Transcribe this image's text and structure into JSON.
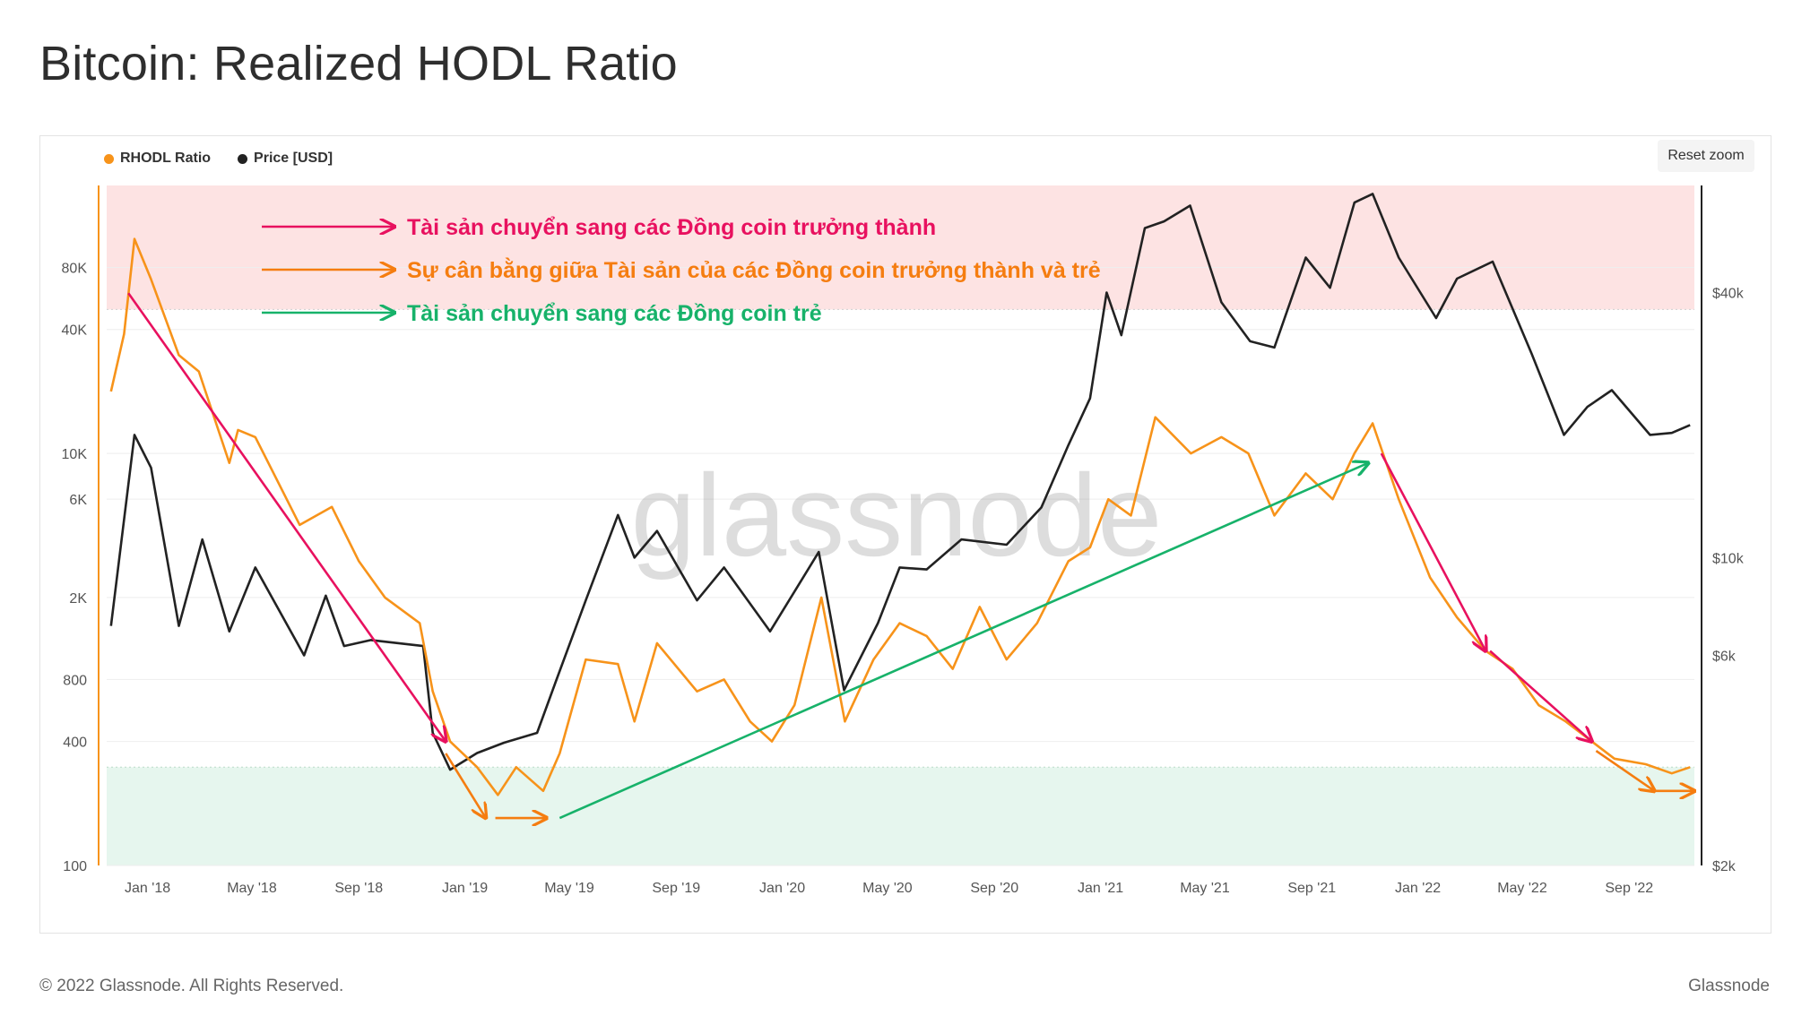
{
  "page": {
    "title": "Bitcoin: Realized HODL Ratio",
    "reset_zoom_label": "Reset zoom",
    "footer_copyright": "© 2022 Glassnode. All Rights Reserved.",
    "footer_brand": "Glassnode"
  },
  "colors": {
    "rhodl": "#f7931a",
    "price": "#222222",
    "arrow_pink": "#e8115f",
    "arrow_orange": "#f57d10",
    "arrow_green": "#17b26a",
    "band_red": "#fde3e3",
    "band_green": "#e6f6ee"
  },
  "annotations": [
    {
      "text": "Tài sản chuyển sang các Đồng coin trưởng thành",
      "color_key": "arrow_pink"
    },
    {
      "text": "Sự cân bằng giữa Tài sản của các Đồng coin trưởng thành và trẻ",
      "color_key": "arrow_orange"
    },
    {
      "text": "Tài sản chuyển sang các Đồng coin trẻ",
      "color_key": "arrow_green"
    }
  ],
  "watermark": "glassnode",
  "chart_data": {
    "type": "line",
    "legend": [
      "RHODL Ratio",
      "Price [USD]"
    ],
    "legend_placement": "top-left",
    "x_ticks": [
      "Jan '18",
      "May '18",
      "Sep '18",
      "Jan '19",
      "May '19",
      "Sep '19",
      "Jan '20",
      "May '20",
      "Sep '20",
      "Jan '21",
      "May '21",
      "Sep '21",
      "Jan '22",
      "May '22",
      "Sep '22"
    ],
    "x_range": [
      "2017-11-15",
      "2022-11-15"
    ],
    "left_axis": {
      "label": "",
      "scale": "log",
      "range": [
        100,
        200000
      ],
      "ticks": [
        "100",
        "400",
        "800",
        "2K",
        "6K",
        "10K",
        "40K",
        "80K"
      ]
    },
    "right_axis": {
      "label": "",
      "scale": "log",
      "range": [
        2000,
        70000
      ],
      "ticks": [
        "$2k",
        "$6k",
        "$10k",
        "$40k"
      ]
    },
    "bands": {
      "upper_threshold": 50000,
      "lower_threshold": 300
    },
    "series": [
      {
        "name": "RHODL Ratio",
        "axis": "left",
        "points": [
          [
            "2017-11-20",
            20000
          ],
          [
            "2017-12-05",
            38000
          ],
          [
            "2017-12-17",
            110000
          ],
          [
            "2018-01-05",
            70000
          ],
          [
            "2018-02-06",
            30000
          ],
          [
            "2018-03-01",
            25000
          ],
          [
            "2018-04-05",
            9000
          ],
          [
            "2018-04-15",
            13000
          ],
          [
            "2018-05-05",
            12000
          ],
          [
            "2018-06-25",
            4500
          ],
          [
            "2018-08-01",
            5500
          ],
          [
            "2018-09-01",
            3000
          ],
          [
            "2018-10-01",
            2000
          ],
          [
            "2018-11-10",
            1500
          ],
          [
            "2018-11-25",
            700
          ],
          [
            "2018-12-15",
            400
          ],
          [
            "2019-01-15",
            300
          ],
          [
            "2019-02-08",
            220
          ],
          [
            "2019-03-01",
            300
          ],
          [
            "2019-04-01",
            230
          ],
          [
            "2019-04-20",
            350
          ],
          [
            "2019-05-20",
            1000
          ],
          [
            "2019-06-26",
            950
          ],
          [
            "2019-07-15",
            500
          ],
          [
            "2019-08-10",
            1200
          ],
          [
            "2019-09-25",
            700
          ],
          [
            "2019-10-26",
            800
          ],
          [
            "2019-11-25",
            500
          ],
          [
            "2019-12-20",
            400
          ],
          [
            "2020-01-15",
            600
          ],
          [
            "2020-02-15",
            2000
          ],
          [
            "2020-03-13",
            500
          ],
          [
            "2020-04-15",
            1000
          ],
          [
            "2020-05-15",
            1500
          ],
          [
            "2020-06-15",
            1300
          ],
          [
            "2020-07-15",
            900
          ],
          [
            "2020-08-15",
            1800
          ],
          [
            "2020-09-15",
            1000
          ],
          [
            "2020-10-20",
            1500
          ],
          [
            "2020-11-25",
            3000
          ],
          [
            "2020-12-20",
            3500
          ],
          [
            "2021-01-10",
            6000
          ],
          [
            "2021-02-05",
            5000
          ],
          [
            "2021-03-05",
            15000
          ],
          [
            "2021-04-15",
            10000
          ],
          [
            "2021-05-20",
            12000
          ],
          [
            "2021-06-20",
            10000
          ],
          [
            "2021-07-20",
            5000
          ],
          [
            "2021-08-25",
            8000
          ],
          [
            "2021-09-25",
            6000
          ],
          [
            "2021-10-20",
            10000
          ],
          [
            "2021-11-10",
            14000
          ],
          [
            "2021-12-10",
            6000
          ],
          [
            "2022-01-15",
            2500
          ],
          [
            "2022-02-15",
            1600
          ],
          [
            "2022-03-20",
            1100
          ],
          [
            "2022-04-20",
            900
          ],
          [
            "2022-05-20",
            600
          ],
          [
            "2022-06-20",
            500
          ],
          [
            "2022-07-20",
            400
          ],
          [
            "2022-08-15",
            330
          ],
          [
            "2022-09-20",
            310
          ],
          [
            "2022-10-20",
            280
          ],
          [
            "2022-11-10",
            300
          ]
        ]
      },
      {
        "name": "Price [USD]",
        "axis": "right",
        "points": [
          [
            "2017-11-20",
            7000
          ],
          [
            "2017-12-17",
            19000
          ],
          [
            "2018-01-05",
            16000
          ],
          [
            "2018-02-06",
            7000
          ],
          [
            "2018-03-05",
            11000
          ],
          [
            "2018-04-05",
            6800
          ],
          [
            "2018-05-05",
            9500
          ],
          [
            "2018-06-30",
            6000
          ],
          [
            "2018-07-25",
            8200
          ],
          [
            "2018-08-15",
            6300
          ],
          [
            "2018-09-15",
            6500
          ],
          [
            "2018-11-14",
            6300
          ],
          [
            "2018-11-25",
            4000
          ],
          [
            "2018-12-15",
            3300
          ],
          [
            "2019-01-15",
            3600
          ],
          [
            "2019-02-15",
            3800
          ],
          [
            "2019-03-25",
            4000
          ],
          [
            "2019-04-15",
            5200
          ],
          [
            "2019-05-20",
            8000
          ],
          [
            "2019-06-26",
            12500
          ],
          [
            "2019-07-15",
            10000
          ],
          [
            "2019-08-10",
            11500
          ],
          [
            "2019-09-25",
            8000
          ],
          [
            "2019-10-26",
            9500
          ],
          [
            "2019-12-18",
            6800
          ],
          [
            "2020-02-12",
            10300
          ],
          [
            "2020-03-12",
            5000
          ],
          [
            "2020-04-20",
            7100
          ],
          [
            "2020-05-15",
            9500
          ],
          [
            "2020-06-15",
            9400
          ],
          [
            "2020-07-25",
            11000
          ],
          [
            "2020-09-15",
            10700
          ],
          [
            "2020-10-25",
            13000
          ],
          [
            "2020-11-25",
            18000
          ],
          [
            "2020-12-20",
            23000
          ],
          [
            "2021-01-08",
            40000
          ],
          [
            "2021-01-25",
            32000
          ],
          [
            "2021-02-21",
            56000
          ],
          [
            "2021-03-15",
            58000
          ],
          [
            "2021-04-14",
            63000
          ],
          [
            "2021-05-20",
            38000
          ],
          [
            "2021-06-22",
            31000
          ],
          [
            "2021-07-20",
            30000
          ],
          [
            "2021-08-25",
            48000
          ],
          [
            "2021-09-22",
            41000
          ],
          [
            "2021-10-20",
            64000
          ],
          [
            "2021-11-10",
            67000
          ],
          [
            "2021-12-10",
            48000
          ],
          [
            "2022-01-22",
            35000
          ],
          [
            "2022-02-15",
            43000
          ],
          [
            "2022-03-28",
            47000
          ],
          [
            "2022-05-12",
            29000
          ],
          [
            "2022-06-18",
            19000
          ],
          [
            "2022-07-15",
            22000
          ],
          [
            "2022-08-12",
            24000
          ],
          [
            "2022-09-25",
            19000
          ],
          [
            "2022-10-20",
            19200
          ],
          [
            "2022-11-10",
            20000
          ]
        ]
      }
    ],
    "arrows": [
      {
        "color_key": "arrow_pink",
        "from": [
          "2017-12-10",
          60000
        ],
        "to": [
          "2018-12-10",
          400
        ]
      },
      {
        "color_key": "arrow_orange",
        "from": [
          "2018-12-10",
          350
        ],
        "to": [
          "2019-01-25",
          170
        ]
      },
      {
        "color_key": "arrow_orange",
        "from": [
          "2019-02-05",
          170
        ],
        "to": [
          "2019-04-05",
          170
        ]
      },
      {
        "color_key": "arrow_green",
        "from": [
          "2019-04-20",
          170
        ],
        "to": [
          "2021-11-05",
          9000
        ]
      },
      {
        "color_key": "arrow_pink",
        "from": [
          "2021-11-20",
          10000
        ],
        "to": [
          "2022-03-20",
          1100
        ]
      },
      {
        "color_key": "arrow_pink",
        "from": [
          "2022-03-25",
          1100
        ],
        "to": [
          "2022-07-20",
          400
        ]
      },
      {
        "color_key": "arrow_orange",
        "from": [
          "2022-07-25",
          360
        ],
        "to": [
          "2022-09-30",
          230
        ]
      },
      {
        "color_key": "arrow_orange",
        "from": [
          "2022-10-01",
          230
        ],
        "to": [
          "2022-11-15",
          230
        ]
      }
    ]
  }
}
